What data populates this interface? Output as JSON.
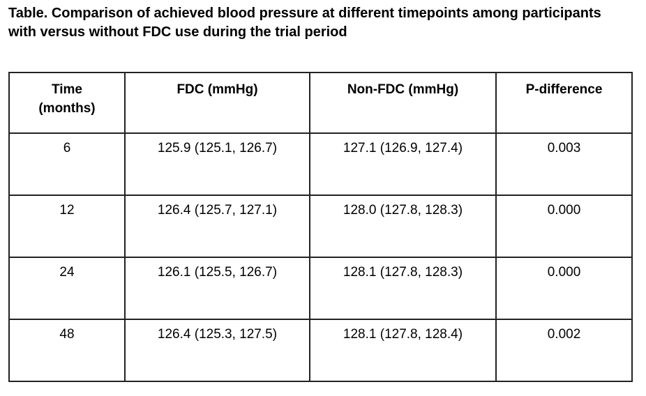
{
  "title": "Table. Comparison of achieved blood pressure at different timepoints among participants with versus without FDC use during the trial period",
  "table": {
    "headers": {
      "time": "Time\n(months)",
      "fdc": "FDC (mmHg)",
      "non_fdc": "Non-FDC (mmHg)",
      "p_difference": "P-difference"
    },
    "rows": [
      {
        "time": "6",
        "fdc": "125.9 (125.1, 126.7)",
        "non_fdc": "127.1 (126.9, 127.4)",
        "p": "0.003"
      },
      {
        "time": "12",
        "fdc": "126.4 (125.7, 127.1)",
        "non_fdc": "128.0 (127.8, 128.3)",
        "p": "0.000"
      },
      {
        "time": "24",
        "fdc": "126.1 (125.5, 126.7)",
        "non_fdc": "128.1 (127.8, 128.3)",
        "p": "0.000"
      },
      {
        "time": "48",
        "fdc": "126.4 (125.3, 127.5)",
        "non_fdc": "128.1 (127.8, 128.4)",
        "p": "0.002"
      }
    ]
  },
  "colors": {
    "text": "#000000",
    "border": "#222222",
    "background": "#ffffff"
  }
}
